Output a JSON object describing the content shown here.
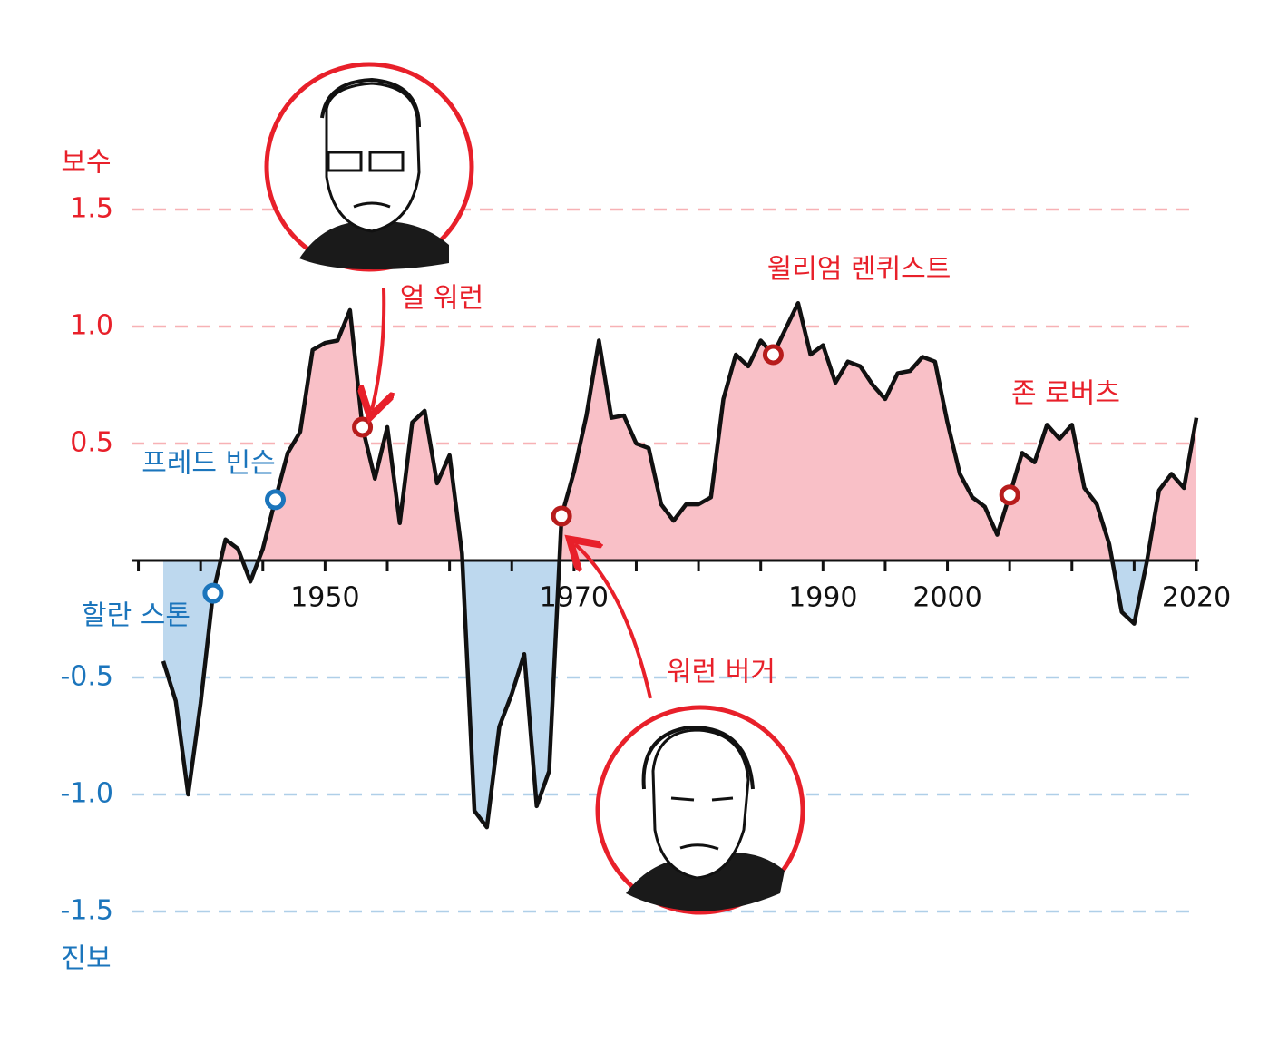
{
  "chart_data": {
    "type": "area-line",
    "y_label_top": "보수",
    "y_label_bottom": "진보",
    "x": [
      1937,
      1938,
      1939,
      1940,
      1941,
      1942,
      1943,
      1944,
      1945,
      1946,
      1947,
      1948,
      1949,
      1950,
      1951,
      1952,
      1953,
      1954,
      1955,
      1956,
      1957,
      1958,
      1959,
      1960,
      1961,
      1962,
      1963,
      1964,
      1965,
      1966,
      1967,
      1968,
      1969,
      1970,
      1971,
      1972,
      1973,
      1974,
      1975,
      1976,
      1977,
      1978,
      1979,
      1980,
      1981,
      1982,
      1983,
      1984,
      1985,
      1986,
      1987,
      1988,
      1989,
      1990,
      1991,
      1992,
      1993,
      1994,
      1995,
      1996,
      1997,
      1998,
      1999,
      2000,
      2001,
      2002,
      2003,
      2004,
      2005,
      2006,
      2007,
      2008,
      2009,
      2010,
      2011,
      2012,
      2013,
      2014,
      2015,
      2016,
      2017,
      2018,
      2019,
      2020
    ],
    "values": [
      -0.43,
      -0.6,
      -1.0,
      -0.61,
      -0.14,
      0.09,
      0.05,
      -0.09,
      0.05,
      0.26,
      0.46,
      0.55,
      0.9,
      0.93,
      0.94,
      1.07,
      0.57,
      0.35,
      0.57,
      0.16,
      0.59,
      0.64,
      0.33,
      0.45,
      0.03,
      -1.07,
      -1.14,
      -0.71,
      -0.57,
      -0.4,
      -1.05,
      -0.9,
      0.19,
      0.38,
      0.62,
      0.94,
      0.61,
      0.62,
      0.5,
      0.48,
      0.24,
      0.17,
      0.24,
      0.24,
      0.27,
      0.69,
      0.88,
      0.83,
      0.94,
      0.88,
      0.99,
      1.1,
      0.88,
      0.92,
      0.76,
      0.85,
      0.83,
      0.75,
      0.69,
      0.8,
      0.81,
      0.87,
      0.85,
      0.59,
      0.37,
      0.27,
      0.23,
      0.11,
      0.28,
      0.46,
      0.42,
      0.58,
      0.52,
      0.58,
      0.31,
      0.24,
      0.07,
      -0.22,
      -0.27,
      -0.01,
      0.3,
      0.37,
      0.31,
      0.61
    ],
    "color": "#111111",
    "fill_positive": "#f9c0c7",
    "fill_negative": "#bdd8ee",
    "positive_color": "#e8202a",
    "negative_color": "#1b75bc",
    "ylim": [
      -1.7,
      1.8
    ],
    "yticks": [
      1.5,
      {
        "value": 1,
        "label": "1.0"
      },
      0.5,
      -0.5,
      {
        "value": -1,
        "label": "-1.0"
      },
      -1.5
    ],
    "xlim": [
      1937,
      2020
    ],
    "xticks": [
      1950,
      1970,
      1990,
      2000,
      2020
    ],
    "xminorticks": [
      1935,
      1940,
      1945,
      1955,
      1960,
      1965,
      1975,
      1980,
      1985,
      1995,
      2005,
      2010,
      2015
    ],
    "grid": true,
    "annotations": [
      {
        "label": "할란 스톤",
        "x": 1941,
        "color": "#1b75bc"
      },
      {
        "label": "프레드 빈슨",
        "x": 1946,
        "color": "#1b75bc"
      },
      {
        "label": "얼 워런",
        "x": 1953,
        "color": "#e8202a"
      },
      {
        "label": "워런 버거",
        "x": 1969,
        "color": "#e8202a"
      },
      {
        "label": "윌리엄 렌퀴스트",
        "x": 1986,
        "color": "#e8202a"
      },
      {
        "label": "존 로버츠",
        "x": 2005,
        "color": "#e8202a"
      }
    ]
  }
}
